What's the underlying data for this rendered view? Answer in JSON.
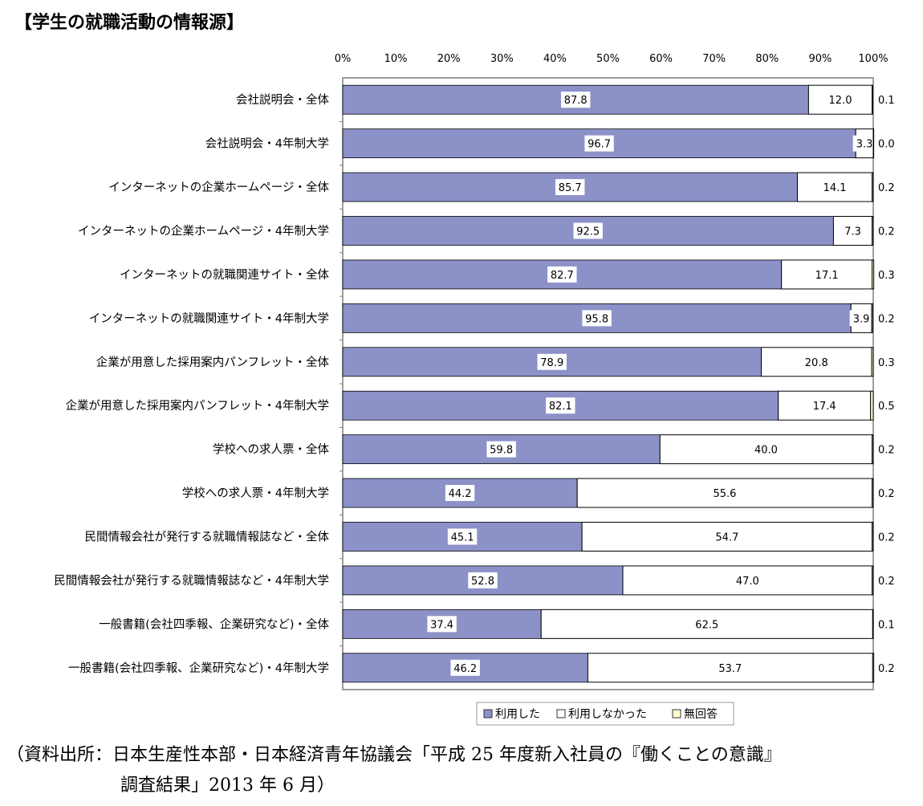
{
  "header_title": "【学生の就職活動の情報源】",
  "source_line1": "（資料出所：日本生産性本部・日本経済青年協議会「平成 25 年度新入社員の『働くことの意識』",
  "source_line2": "調査結果」2013 年 6 月）",
  "colors": {
    "used": "#8c92c8",
    "not_used": "#ffffff",
    "no_answer": "#ffffcc",
    "frame": "#7f7f7f"
  },
  "chart_data": {
    "type": "bar",
    "orientation": "horizontal",
    "stacked": true,
    "percent_scale": true,
    "xlim": [
      0,
      100
    ],
    "x_ticks": [
      "0%",
      "10%",
      "20%",
      "30%",
      "40%",
      "50%",
      "60%",
      "70%",
      "80%",
      "90%",
      "100%"
    ],
    "legend_position": "bottom-right",
    "categories": [
      "会社説明会・全体",
      "会社説明会・4年制大学",
      "インターネットの企業ホームページ・全体",
      "インターネットの企業ホームページ・4年制大学",
      "インターネットの就職関連サイト・全体",
      "インターネットの就職関連サイト・4年制大学",
      "企業が用意した採用案内パンフレット・全体",
      "企業が用意した採用案内パンフレット・4年制大学",
      "学校への求人票・全体",
      "学校への求人票・4年制大学",
      "民間情報会社が発行する就職情報誌など・全体",
      "民間情報会社が発行する就職情報誌など・4年制大学",
      "一般書籍(会社四季報、企業研究など)・全体",
      "一般書籍(会社四季報、企業研究など)・4年制大学"
    ],
    "series": [
      {
        "name": "利用した",
        "values": [
          87.8,
          96.7,
          85.7,
          92.5,
          82.7,
          95.8,
          78.9,
          82.1,
          59.8,
          44.2,
          45.1,
          52.8,
          37.4,
          46.2
        ],
        "labels": [
          "87.8",
          "96.7",
          "85.7",
          "92.5",
          "82.7",
          "95.8",
          "78.9",
          "82.1",
          "59.8",
          "44.2",
          "45.1",
          "52.8",
          "37.4",
          "46.2"
        ]
      },
      {
        "name": "利用しなかった",
        "values": [
          12.0,
          3.3,
          14.1,
          7.3,
          17.1,
          3.9,
          20.8,
          17.4,
          40.0,
          55.6,
          54.7,
          47.0,
          62.5,
          53.7
        ],
        "labels": [
          "12.0",
          "3.3",
          "14.1",
          "7.3",
          "17.1",
          "3.9",
          "20.8",
          "17.4",
          "40.0",
          "55.6",
          "54.7",
          "47.0",
          "62.5",
          "53.7"
        ]
      },
      {
        "name": "無回答",
        "values": [
          0.1,
          0.0,
          0.2,
          0.2,
          0.3,
          0.2,
          0.3,
          0.5,
          0.2,
          0.2,
          0.2,
          0.2,
          0.1,
          0.2
        ],
        "labels": [
          "0.1",
          "0.0",
          "0.2",
          "0.2",
          "0.3",
          "0.2",
          "0.3",
          "0.5",
          "0.2",
          "0.2",
          "0.2",
          "0.2",
          "0.1",
          "0.2"
        ]
      }
    ]
  }
}
